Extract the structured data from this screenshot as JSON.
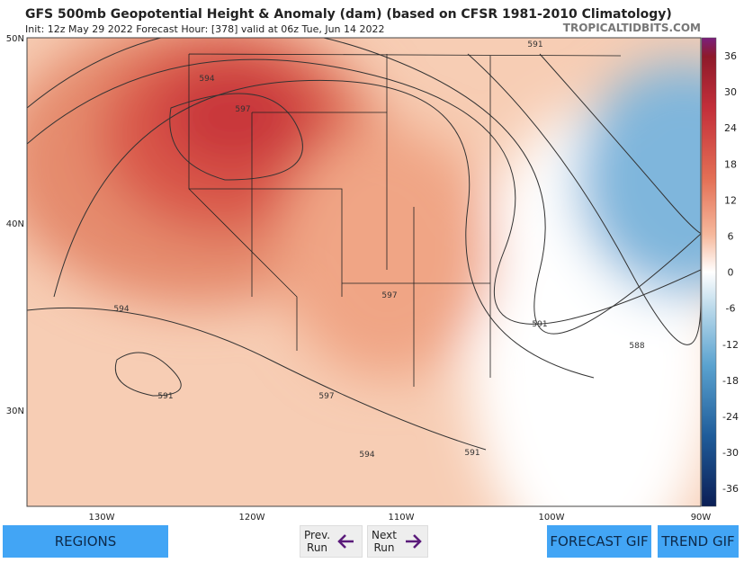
{
  "header": {
    "title": "GFS 500mb Geopotential Height & Anomaly (dam) (based on CFSR 1981-2010 Climatology)",
    "subtitle": "Init: 12z May 29 2022   Forecast Hour: [378]   valid at 06z Tue, Jun 14 2022",
    "watermark": "TROPICALTIDBITS.COM"
  },
  "map": {
    "lat_labels": [
      "50N",
      "40N",
      "30N"
    ],
    "lon_labels": [
      "130W",
      "120W",
      "110W",
      "100W",
      "90W"
    ],
    "contour_labels": [
      "591",
      "594",
      "597",
      "597",
      "591",
      "597",
      "591",
      "588",
      "594",
      "594",
      "591"
    ]
  },
  "colorbar": {
    "labels": [
      "36",
      "30",
      "24",
      "18",
      "12",
      "6",
      "0",
      "-6",
      "-12",
      "-18",
      "-24",
      "-30",
      "-36"
    ]
  },
  "buttons": {
    "regions": "REGIONS",
    "prev": "Prev.\nRun",
    "next": "Next\nRun",
    "forecast_gif": "FORECAST GIF",
    "trend_gif": "TREND GIF"
  }
}
